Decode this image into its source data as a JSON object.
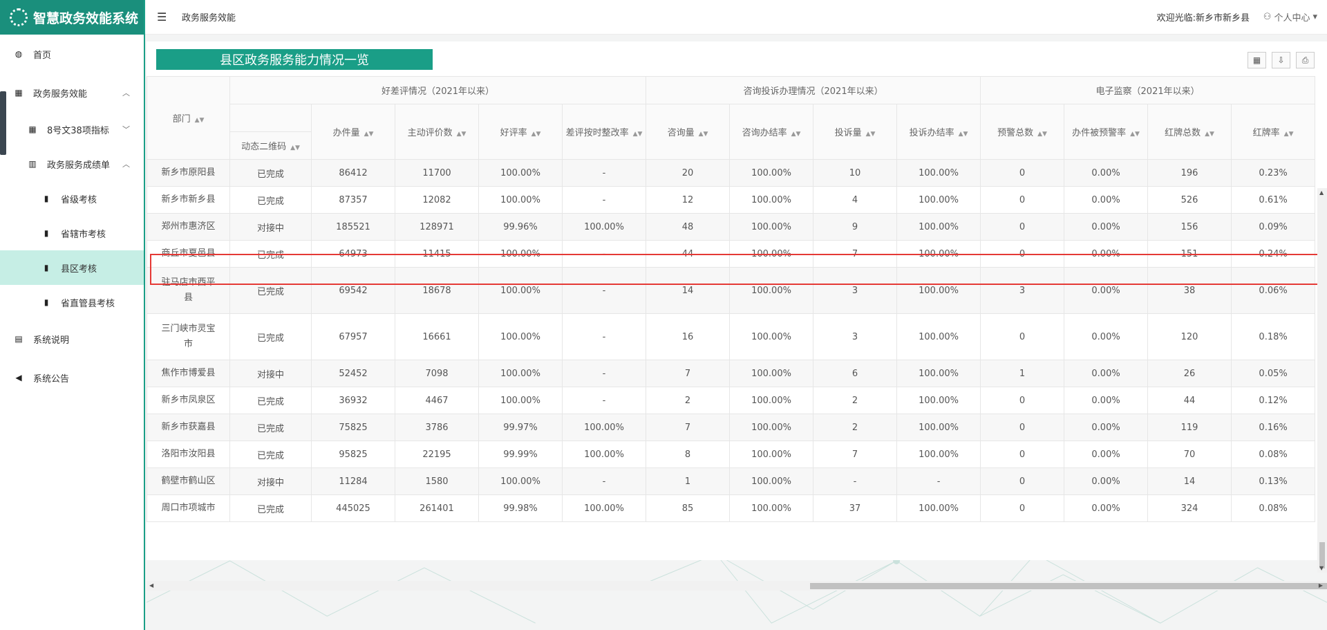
{
  "app": {
    "title": "智慧政务效能系统"
  },
  "sidebar": {
    "items": [
      {
        "label": "首页",
        "icon": "dashboard-icon"
      },
      {
        "label": "政务服务效能",
        "icon": "calendar-icon"
      },
      {
        "label": "8号文38项指标",
        "icon": "calendar-icon"
      },
      {
        "label": "政务服务成绩单",
        "icon": "bar-chart-icon"
      },
      {
        "label": "省级考核",
        "icon": "bar-chart-icon"
      },
      {
        "label": "省辖市考核",
        "icon": "bar-chart-icon"
      },
      {
        "label": "县区考核",
        "icon": "bar-chart-icon"
      },
      {
        "label": "省直管县考核",
        "icon": "bar-chart-icon"
      },
      {
        "label": "系统说明",
        "icon": "document-icon"
      },
      {
        "label": "系统公告",
        "icon": "speaker-icon"
      }
    ]
  },
  "header": {
    "breadcrumb": "政务服务效能",
    "welcome": "欢迎光临:新乡市新乡县",
    "user_center": "个人中心"
  },
  "panel": {
    "title": "县区政务服务能力情况一览"
  },
  "table": {
    "group_headers": [
      "好差评情况（2021年以来）",
      "咨询投诉办理情况（2021年以来）",
      "电子监察（2021年以来）"
    ],
    "columns": {
      "dept": "部门",
      "qr": "动态二维码",
      "cases": "办件量",
      "active_eval": "主动评价数",
      "good_rate": "好评率",
      "bad_fix_rate": "差评按时整改率",
      "consult": "咨询量",
      "consult_rate": "咨询办结率",
      "complaint": "投诉量",
      "complaint_rate": "投诉办结率",
      "warn_total": "预警总数",
      "warned_rate": "办件被预警率",
      "red_total": "红牌总数",
      "red_rate": "红牌率"
    },
    "rows": [
      [
        "新乡市原阳县",
        "已完成",
        "86412",
        "11700",
        "100.00%",
        "-",
        "20",
        "100.00%",
        "10",
        "100.00%",
        "0",
        "0.00%",
        "196",
        "0.23%"
      ],
      [
        "新乡市新乡县",
        "已完成",
        "87357",
        "12082",
        "100.00%",
        "-",
        "12",
        "100.00%",
        "4",
        "100.00%",
        "0",
        "0.00%",
        "526",
        "0.61%"
      ],
      [
        "郑州市惠济区",
        "对接中",
        "185521",
        "128971",
        "99.96%",
        "100.00%",
        "48",
        "100.00%",
        "9",
        "100.00%",
        "0",
        "0.00%",
        "156",
        "0.09%"
      ],
      [
        "商丘市夏邑县",
        "已完成",
        "64973",
        "11415",
        "100.00%",
        "-",
        "44",
        "100.00%",
        "7",
        "100.00%",
        "0",
        "0.00%",
        "151",
        "0.24%"
      ],
      [
        "驻马店市西平县",
        "已完成",
        "69542",
        "18678",
        "100.00%",
        "-",
        "14",
        "100.00%",
        "3",
        "100.00%",
        "3",
        "0.00%",
        "38",
        "0.06%"
      ],
      [
        "三门峡市灵宝市",
        "已完成",
        "67957",
        "16661",
        "100.00%",
        "-",
        "16",
        "100.00%",
        "3",
        "100.00%",
        "0",
        "0.00%",
        "120",
        "0.18%"
      ],
      [
        "焦作市博爱县",
        "对接中",
        "52452",
        "7098",
        "100.00%",
        "-",
        "7",
        "100.00%",
        "6",
        "100.00%",
        "1",
        "0.00%",
        "26",
        "0.05%"
      ],
      [
        "新乡市凤泉区",
        "已完成",
        "36932",
        "4467",
        "100.00%",
        "-",
        "2",
        "100.00%",
        "2",
        "100.00%",
        "0",
        "0.00%",
        "44",
        "0.12%"
      ],
      [
        "新乡市获嘉县",
        "已完成",
        "75825",
        "3786",
        "99.97%",
        "100.00%",
        "7",
        "100.00%",
        "2",
        "100.00%",
        "0",
        "0.00%",
        "119",
        "0.16%"
      ],
      [
        "洛阳市汝阳县",
        "已完成",
        "95825",
        "22195",
        "99.99%",
        "100.00%",
        "8",
        "100.00%",
        "7",
        "100.00%",
        "0",
        "0.00%",
        "70",
        "0.08%"
      ],
      [
        "鹤壁市鹤山区",
        "对接中",
        "11284",
        "1580",
        "100.00%",
        "-",
        "1",
        "100.00%",
        "-",
        "-",
        "0",
        "0.00%",
        "14",
        "0.13%"
      ],
      [
        "周口市项城市",
        "已完成",
        "445025",
        "261401",
        "99.98%",
        "100.00%",
        "85",
        "100.00%",
        "37",
        "100.00%",
        "0",
        "0.00%",
        "324",
        "0.08%"
      ]
    ],
    "dept_display": [
      [
        "新乡市原阳县"
      ],
      [
        "新乡市新乡县"
      ],
      [
        "郑州市惠济区"
      ],
      [
        "商丘市夏邑县"
      ],
      [
        "驻马店市西平",
        "县"
      ],
      [
        "三门峡市灵宝",
        "市"
      ],
      [
        "焦作市博爱县"
      ],
      [
        "新乡市凤泉区"
      ],
      [
        "新乡市获嘉县"
      ],
      [
        "洛阳市汝阳县"
      ],
      [
        "鹤壁市鹤山区"
      ],
      [
        "周口市项城市"
      ]
    ],
    "highlighted_row": "新乡市新乡县"
  },
  "colors": {
    "brand": "#1a9e87",
    "highlight": "#e53935",
    "active_nav": "#c6eee5"
  }
}
